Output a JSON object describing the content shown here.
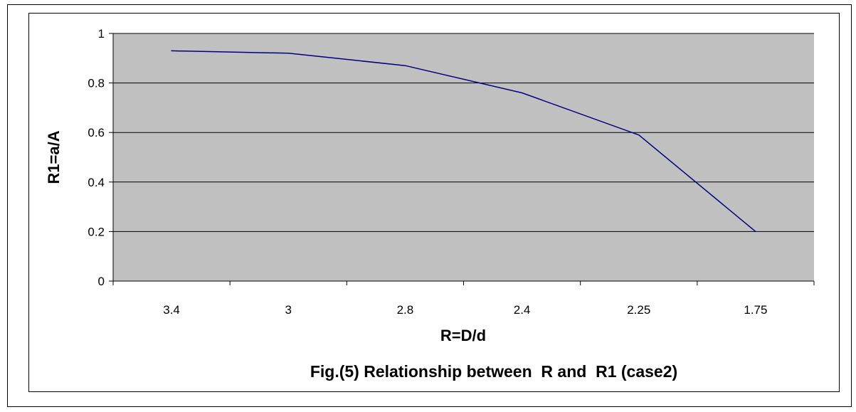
{
  "chart_data": {
    "type": "line",
    "categories": [
      "3.4",
      "3",
      "2.8",
      "2.4",
      "2.25",
      "1.75"
    ],
    "series": [
      {
        "values": [
          0.93,
          0.92,
          0.87,
          0.76,
          0.59,
          0.2
        ]
      }
    ],
    "xlabel": "R=D/d",
    "ylabel": "R1=a/A",
    "caption": "Fig.(5) Relationship between  R and  R1 (case2)",
    "ylim": [
      0,
      1
    ],
    "yticks": [
      0,
      0.2,
      0.4,
      0.6,
      0.8,
      1
    ],
    "grid": true,
    "legend": "none",
    "colors": {
      "plot_background": "#c0c0c0",
      "line": "#000080",
      "gridline": "#000000"
    }
  }
}
